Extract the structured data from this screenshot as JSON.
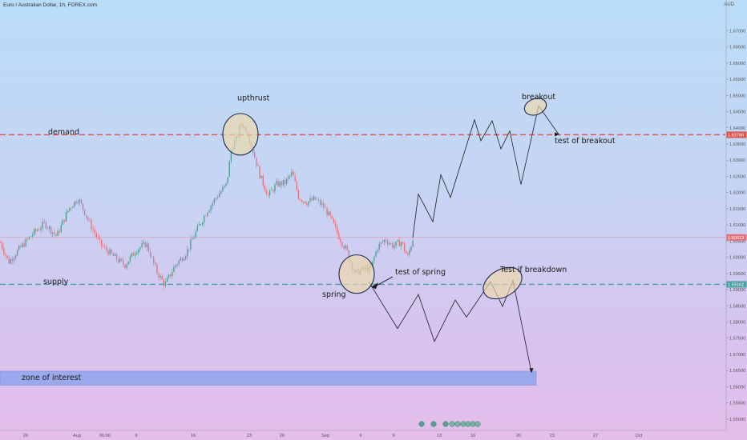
{
  "header": {
    "symbol_title": "Euro / Australian Dollar, 1h, FOREX.com",
    "currency": "AUD"
  },
  "colors": {
    "up_candle": "#4c9a8e",
    "down_candle": "#e2707a",
    "demand_line": "#d9534f",
    "supply_line": "#4a9fa0",
    "zone_fill": "#9aa9ec",
    "circle_fill": "#f0d9a6",
    "circle_stroke": "#1e2a55",
    "current_price_tag": "#e2707a",
    "demand_tag": "#d9534f",
    "supply_tag": "#4a9fa0"
  },
  "chart_data": {
    "type": "candlestick",
    "y_axis": {
      "range": [
        1.5465,
        1.6795
      ],
      "ticks": [
        "1.67000",
        "1.66500",
        "1.66000",
        "1.65500",
        "1.65000",
        "1.64500",
        "1.64000",
        "1.63500",
        "1.63000",
        "1.62500",
        "1.62000",
        "1.61500",
        "1.61000",
        "1.60500",
        "1.60000",
        "1.59500",
        "1.59000",
        "1.58500",
        "1.58000",
        "1.57500",
        "1.57000",
        "1.56500",
        "1.56000",
        "1.55500",
        "1.55000"
      ]
    },
    "x_axis": {
      "ticks": [
        "26",
        "Aug",
        "06:00",
        "9",
        "16",
        "23",
        "26",
        "Sep",
        "6",
        "9",
        "13",
        "16",
        "20",
        "23",
        "27",
        "Oct"
      ]
    },
    "levels": [
      {
        "name": "demand",
        "price": 1.63786,
        "tag": "1.63786"
      },
      {
        "name": "supply",
        "price": 1.59162,
        "tag": "1.59162"
      },
      {
        "name": "current",
        "price": 1.60613,
        "tag": "1.60613"
      }
    ],
    "zone": {
      "label": "zone of interest",
      "from": 1.5605,
      "to": 1.5648
    },
    "price_path": [
      [
        0,
        1.6045
      ],
      [
        10,
        1.5985
      ],
      [
        25,
        1.603
      ],
      [
        40,
        1.6072
      ],
      [
        55,
        1.6105
      ],
      [
        70,
        1.6065
      ],
      [
        85,
        1.615
      ],
      [
        97,
        1.6182
      ],
      [
        110,
        1.6112
      ],
      [
        125,
        1.6038
      ],
      [
        140,
        1.6005
      ],
      [
        155,
        1.5975
      ],
      [
        170,
        1.6025
      ],
      [
        182,
        1.6042
      ],
      [
        195,
        1.5955
      ],
      [
        205,
        1.5915
      ],
      [
        218,
        1.5975
      ],
      [
        232,
        1.6015
      ],
      [
        245,
        1.6085
      ],
      [
        258,
        1.6145
      ],
      [
        270,
        1.6188
      ],
      [
        282,
        1.6225
      ],
      [
        288,
        1.6335
      ],
      [
        295,
        1.637
      ],
      [
        300,
        1.6415
      ],
      [
        308,
        1.639
      ],
      [
        316,
        1.632
      ],
      [
        324,
        1.625
      ],
      [
        334,
        1.619
      ],
      [
        344,
        1.6225
      ],
      [
        355,
        1.623
      ],
      [
        364,
        1.6262
      ],
      [
        372,
        1.6185
      ],
      [
        382,
        1.617
      ],
      [
        392,
        1.618
      ],
      [
        402,
        1.616
      ],
      [
        412,
        1.612
      ],
      [
        422,
        1.6065
      ],
      [
        432,
        1.602
      ],
      [
        437,
        1.5985
      ],
      [
        442,
        1.595
      ],
      [
        452,
        1.5962
      ],
      [
        462,
        1.5965
      ],
      [
        470,
        1.603
      ],
      [
        480,
        1.6055
      ],
      [
        490,
        1.6035
      ],
      [
        500,
        1.6048
      ],
      [
        508,
        1.6
      ],
      [
        515,
        1.6061
      ]
    ],
    "projections": [
      {
        "name": "bullish-path",
        "points": [
          [
            515,
            1.6061
          ],
          [
            522,
            1.6195
          ],
          [
            540,
            1.611
          ],
          [
            550,
            1.6255
          ],
          [
            562,
            1.6185
          ],
          [
            592,
            1.6425
          ],
          [
            600,
            1.636
          ],
          [
            614,
            1.6422
          ],
          [
            625,
            1.6335
          ],
          [
            636,
            1.639
          ],
          [
            650,
            1.6225
          ],
          [
            672,
            1.6468
          ],
          [
            697,
            1.638
          ]
        ]
      },
      {
        "name": "bearish-path",
        "points": [
          [
            460,
            1.5925
          ],
          [
            496,
            1.578
          ],
          [
            522,
            1.5885
          ],
          [
            542,
            1.574
          ],
          [
            568,
            1.5868
          ],
          [
            582,
            1.5815
          ],
          [
            612,
            1.5925
          ],
          [
            627,
            1.5848
          ],
          [
            640,
            1.5928
          ],
          [
            663,
            1.5645
          ]
        ]
      }
    ],
    "circles": [
      {
        "name": "upthrust-circle",
        "cx": 300,
        "price": 1.638
      },
      {
        "name": "spring-circle",
        "cx": 445,
        "price": 1.5948
      },
      {
        "name": "breakout-circle",
        "cx": 668,
        "price": 1.6465
      },
      {
        "name": "test-of-breakdown-circle",
        "cx": 627,
        "price": 1.592
      }
    ],
    "annotations": [
      {
        "label": "upthrust",
        "x": 296,
        "price": 1.6485
      },
      {
        "label": "demand",
        "x": 60,
        "price": 1.638
      },
      {
        "label": "supply",
        "x": 54,
        "price": 1.5918
      },
      {
        "label": "spring",
        "x": 402,
        "price": 1.5878
      },
      {
        "label": "test of spring",
        "x": 493,
        "price": 1.5947
      },
      {
        "label": "breakout",
        "x": 651,
        "price": 1.6489
      },
      {
        "label": "test of breakout",
        "x": 692,
        "price": 1.6353
      },
      {
        "label": "Test if breakdown",
        "x": 624,
        "price": 1.5954
      },
      {
        "label": "zone of interest",
        "x": 27,
        "price": 1.5621
      }
    ]
  }
}
